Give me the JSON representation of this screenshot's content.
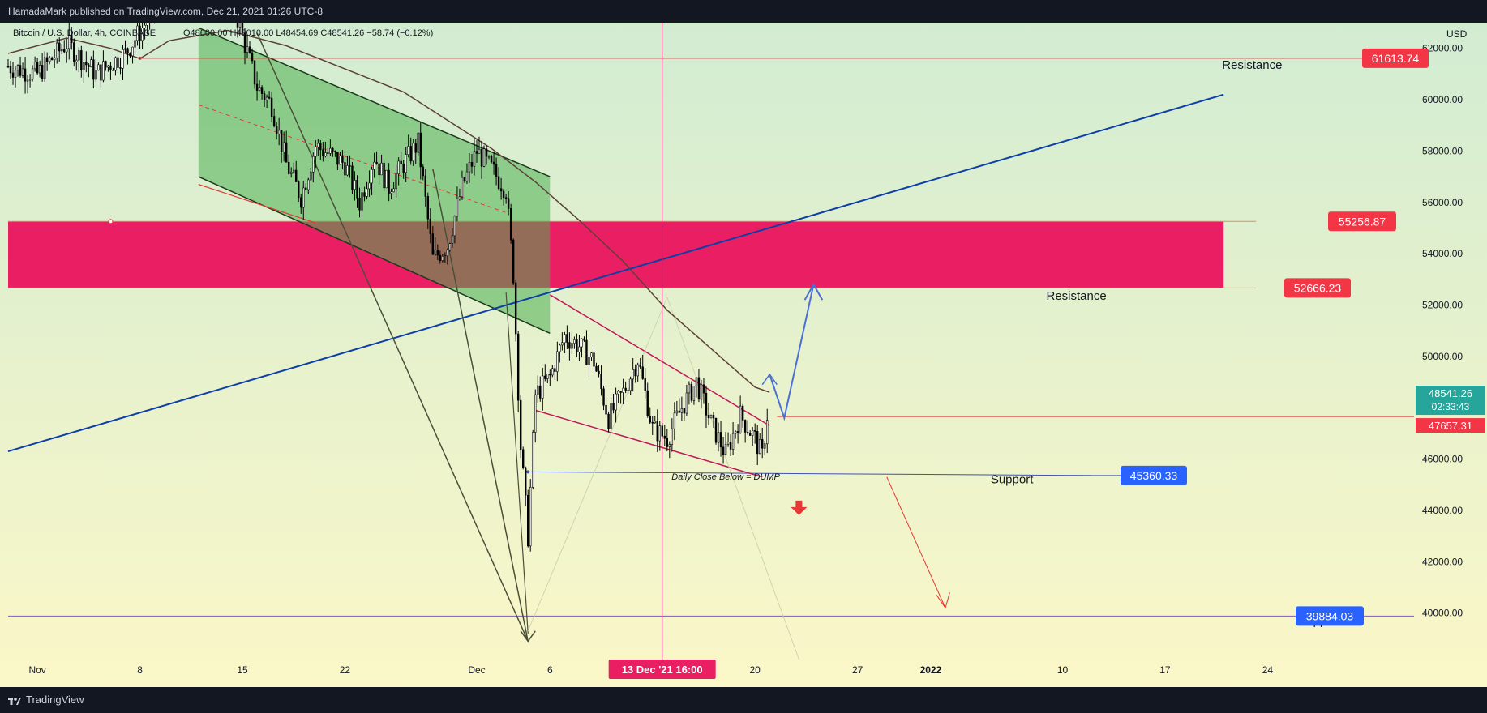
{
  "header": {
    "published": "HamadaMark published on TradingView.com, Dec 21, 2021 01:26 UTC-8"
  },
  "legend": {
    "symbol": "Bitcoin / U.S. Dollar, 4h, COINBASE",
    "ohlc": "O48600.00 H49010.00 L48454.69 C48541.26 −58.74 (−0.12%)"
  },
  "footer": {
    "brand": "TradingView"
  },
  "colors": {
    "bg_top": "#d2ecd2",
    "bg_bottom": "#fbf7c8",
    "zone": "#ea1e63",
    "channel": "#4caf50",
    "blue_line": "#0d3fa8",
    "up": "#ffffff",
    "down": "#000000"
  },
  "chart_data": {
    "type": "candlestick",
    "currency": "USD",
    "timeframe": "4h",
    "ylim": [
      38000,
      63000
    ],
    "y_ticks": [
      "62000.00",
      "60000.00",
      "58000.00",
      "56000.00",
      "54000.00",
      "52000.00",
      "50000.00",
      "48000.00",
      "46000.00",
      "44000.00",
      "42000.00",
      "40000.00"
    ],
    "y_tick_values": [
      62000,
      60000,
      58000,
      56000,
      54000,
      52000,
      50000,
      48000,
      46000,
      44000,
      42000,
      40000
    ],
    "x_ticks": [
      "Nov",
      "8",
      "15",
      "22",
      "Dec",
      "6",
      "13 Dec '21   16:00",
      "20",
      "27",
      "2022",
      "10",
      "17",
      "24"
    ],
    "x_tick_dates": [
      "2021-11-01",
      "2021-11-08",
      "2021-11-15",
      "2021-11-22",
      "2021-12-01",
      "2021-12-06",
      "2021-12-13",
      "2021-12-20",
      "2021-12-27",
      "2022-01-01",
      "2022-01-10",
      "2022-01-17",
      "2022-01-24"
    ],
    "x_range": [
      "2021-10-30",
      "2022-02-03"
    ],
    "crosshair_date": "2021-12-13 16:00",
    "price_series": [
      {
        "d": "2021-10-30",
        "p": 61300
      },
      {
        "d": "2021-11-01",
        "p": 61000
      },
      {
        "d": "2021-11-03",
        "p": 62200
      },
      {
        "d": "2021-11-05",
        "p": 61000
      },
      {
        "d": "2021-11-07",
        "p": 61800
      },
      {
        "d": "2021-11-09",
        "p": 63500
      },
      {
        "d": "2021-11-10",
        "p": 64500
      },
      {
        "d": "2021-11-12",
        "p": 63800
      },
      {
        "d": "2021-11-14",
        "p": 64500
      },
      {
        "d": "2021-11-16",
        "p": 60500
      },
      {
        "d": "2021-11-17",
        "p": 59800
      },
      {
        "d": "2021-11-18",
        "p": 57500
      },
      {
        "d": "2021-11-19",
        "p": 56200
      },
      {
        "d": "2021-11-20",
        "p": 58200
      },
      {
        "d": "2021-11-22",
        "p": 57500
      },
      {
        "d": "2021-11-23",
        "p": 56000
      },
      {
        "d": "2021-11-24",
        "p": 57800
      },
      {
        "d": "2021-11-25",
        "p": 56600
      },
      {
        "d": "2021-11-26",
        "p": 57500
      },
      {
        "d": "2021-11-27",
        "p": 58300
      },
      {
        "d": "2021-11-28",
        "p": 53800
      },
      {
        "d": "2021-11-29",
        "p": 54300
      },
      {
        "d": "2021-11-30",
        "p": 56600
      },
      {
        "d": "2021-12-01",
        "p": 58000
      },
      {
        "d": "2021-12-02",
        "p": 57300
      },
      {
        "d": "2021-12-03",
        "p": 56500
      },
      {
        "d": "2021-12-03.5",
        "p": 53200
      },
      {
        "d": "2021-12-04",
        "p": 46500
      },
      {
        "d": "2021-12-04.5",
        "p": 43000
      },
      {
        "d": "2021-12-05",
        "p": 48500
      },
      {
        "d": "2021-12-06",
        "p": 49200
      },
      {
        "d": "2021-12-07",
        "p": 50800
      },
      {
        "d": "2021-12-08",
        "p": 50400
      },
      {
        "d": "2021-12-09",
        "p": 49800
      },
      {
        "d": "2021-12-10",
        "p": 47600
      },
      {
        "d": "2021-12-11",
        "p": 48600
      },
      {
        "d": "2021-12-12",
        "p": 49900
      },
      {
        "d": "2021-12-13",
        "p": 47200
      },
      {
        "d": "2021-12-14",
        "p": 46800
      },
      {
        "d": "2021-12-15",
        "p": 48000
      },
      {
        "d": "2021-12-16",
        "p": 49000
      },
      {
        "d": "2021-12-17",
        "p": 47400
      },
      {
        "d": "2021-12-18",
        "p": 46200
      },
      {
        "d": "2021-12-19",
        "p": 47700
      },
      {
        "d": "2021-12-20",
        "p": 46800
      },
      {
        "d": "2021-12-20.5",
        "p": 46100
      },
      {
        "d": "2021-12-21",
        "p": 48541
      }
    ],
    "moving_average": [
      {
        "d": "2021-10-30",
        "p": 61800
      },
      {
        "d": "2021-11-03",
        "p": 62400
      },
      {
        "d": "2021-11-06",
        "p": 62000
      },
      {
        "d": "2021-11-08",
        "p": 61600
      },
      {
        "d": "2021-11-10",
        "p": 62300
      },
      {
        "d": "2021-11-14",
        "p": 62700
      },
      {
        "d": "2021-11-18",
        "p": 62100
      },
      {
        "d": "2021-11-22",
        "p": 61200
      },
      {
        "d": "2021-11-26",
        "p": 60300
      },
      {
        "d": "2021-11-29",
        "p": 59200
      },
      {
        "d": "2021-12-02",
        "p": 58100
      },
      {
        "d": "2021-12-05",
        "p": 56800
      },
      {
        "d": "2021-12-08",
        "p": 55300
      },
      {
        "d": "2021-12-11",
        "p": 53700
      },
      {
        "d": "2021-12-14",
        "p": 51800
      },
      {
        "d": "2021-12-17",
        "p": 50300
      },
      {
        "d": "2021-12-20",
        "p": 48800
      },
      {
        "d": "2021-12-21",
        "p": 48600
      }
    ],
    "resistance_zone": {
      "low": 52666.23,
      "high": 55256.87,
      "end": "2022-01-21"
    },
    "price_labels": [
      {
        "value": "61613.74",
        "price": 61613.74,
        "color": "#f23645"
      },
      {
        "value": "55256.87",
        "price": 55256.87,
        "color": "#f23645"
      },
      {
        "value": "52666.23",
        "price": 52666.23,
        "color": "#f23645"
      },
      {
        "value": "45360.33",
        "price": 45360.33,
        "color": "#2962ff"
      },
      {
        "value": "39884.03",
        "price": 39884.03,
        "color": "#2962ff"
      }
    ],
    "current_price": {
      "value": "48541.26",
      "countdown": "02:33:43",
      "price": 48541.26
    },
    "red_level": {
      "value": "47657.31",
      "price": 47657.31
    },
    "annotations": [
      {
        "text": "Resistance",
        "d": "2022-01-25",
        "p": 61200
      },
      {
        "text": "Resistance",
        "d": "2022-01-13",
        "p": 52200
      },
      {
        "text": "Support",
        "d": "2022-01-08",
        "p": 45050
      },
      {
        "text": "Support",
        "d": "2022-01-29",
        "p": 39550
      },
      {
        "text": "Daily Close Below = DUMP",
        "d": "2021-12-18",
        "p": 45200
      }
    ]
  }
}
